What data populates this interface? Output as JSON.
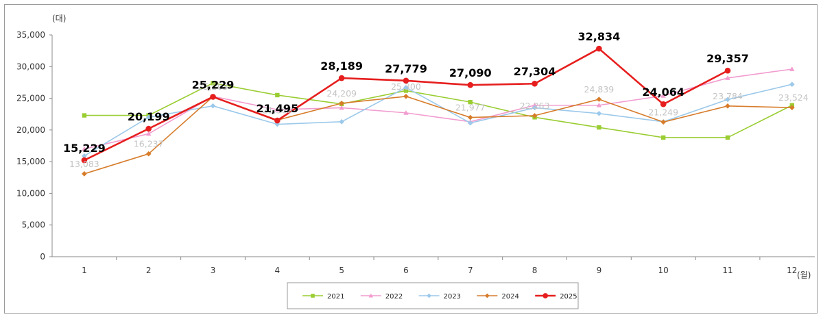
{
  "chart_data": {
    "type": "line",
    "y_unit_label": "(대)",
    "x_unit_label": "(월)",
    "categories": [
      "1",
      "2",
      "3",
      "4",
      "5",
      "6",
      "7",
      "8",
      "9",
      "10",
      "11",
      "12"
    ],
    "ylim": [
      0,
      35000
    ],
    "yticks": [
      0,
      5000,
      10000,
      15000,
      20000,
      25000,
      30000,
      35000
    ],
    "ytick_labels": [
      "0",
      "5,000",
      "10,000",
      "15,000",
      "20,000",
      "25,000",
      "30,000",
      "35,000"
    ],
    "grid": false,
    "legend_position": "bottom-center",
    "series": [
      {
        "name": "2021",
        "color": "#9acd32",
        "marker": "square",
        "values": [
          22300,
          22300,
          27400,
          25500,
          24100,
          26200,
          24400,
          22000,
          20400,
          18800,
          18800,
          23900
        ]
      },
      {
        "name": "2022",
        "color": "#f29ccf",
        "marker": "triangle",
        "values": [
          17000,
          19400,
          25300,
          23200,
          23500,
          22700,
          21300,
          23900,
          23900,
          25400,
          28200,
          29600
        ]
      },
      {
        "name": "2023",
        "color": "#9cc9ea",
        "marker": "diamond",
        "values": [
          15900,
          22000,
          23800,
          20900,
          21300,
          26700,
          21100,
          23500,
          22600,
          21300,
          24800,
          27200
        ]
      },
      {
        "name": "2024",
        "color": "#d77c2b",
        "marker": "diamond",
        "values": [
          13083,
          16237,
          25263,
          21560,
          24209,
          25300,
          21977,
          22263,
          24839,
          21249,
          23784,
          23524
        ]
      },
      {
        "name": "2025",
        "color": "#e61e1e",
        "marker": "circle",
        "values": [
          15229,
          20199,
          25229,
          21495,
          28189,
          27779,
          27090,
          27304,
          32834,
          24064,
          29357,
          null
        ]
      }
    ],
    "faint_labels": [
      {
        "index": 0,
        "text": "13,083"
      },
      {
        "index": 1,
        "text": "16,237"
      },
      {
        "index": 2,
        "text": "25,263"
      },
      {
        "index": 3,
        "text": "21,560"
      },
      {
        "index": 4,
        "text": "24,209"
      },
      {
        "index": 5,
        "text": "25,300"
      },
      {
        "index": 6,
        "text": "21,977"
      },
      {
        "index": 7,
        "text": "22,263"
      },
      {
        "index": 8,
        "text": "24,839"
      },
      {
        "index": 9,
        "text": "21,249"
      },
      {
        "index": 10,
        "text": "23,784"
      },
      {
        "index": 11,
        "text": "23,524"
      }
    ],
    "bold_labels": [
      {
        "index": 0,
        "text": "15,229"
      },
      {
        "index": 1,
        "text": "20,199"
      },
      {
        "index": 2,
        "text": "25,229"
      },
      {
        "index": 3,
        "text": "21,495"
      },
      {
        "index": 4,
        "text": "28,189"
      },
      {
        "index": 5,
        "text": "27,779"
      },
      {
        "index": 6,
        "text": "27,090"
      },
      {
        "index": 7,
        "text": "27,304"
      },
      {
        "index": 8,
        "text": "32,834"
      },
      {
        "index": 9,
        "text": "24,064"
      },
      {
        "index": 10,
        "text": "29,357"
      }
    ]
  }
}
